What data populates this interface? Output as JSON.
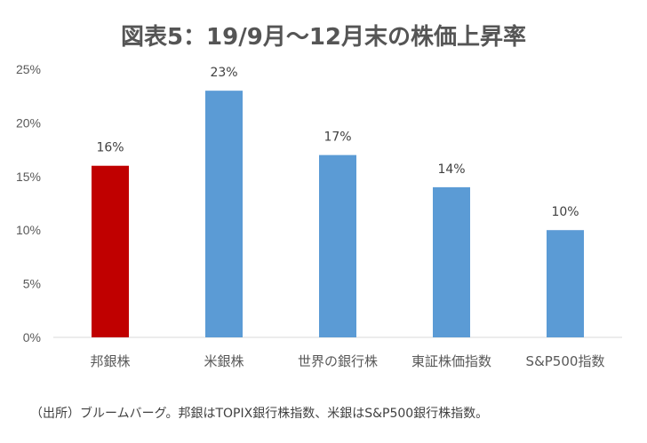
{
  "chart_data": {
    "type": "bar",
    "title": "図表5：19/9月～12月末の株価上昇率",
    "categories": [
      "邦銀株",
      "米銀株",
      "世界の銀行株",
      "東証株価指数",
      "S&P500指数"
    ],
    "values": [
      16,
      23,
      17,
      14,
      10
    ],
    "value_labels": [
      "16%",
      "23%",
      "17%",
      "14%",
      "10%"
    ],
    "bar_colors": [
      "#C00000",
      "#5B9BD5",
      "#5B9BD5",
      "#5B9BD5",
      "#5B9BD5"
    ],
    "ylim": [
      0,
      25
    ],
    "y_ticks": [
      0,
      5,
      10,
      15,
      20,
      25
    ],
    "y_tick_labels": [
      "0%",
      "5%",
      "10%",
      "15%",
      "20%",
      "25%"
    ],
    "grid": false,
    "legend": "none"
  },
  "footer": {
    "source_text": "（出所）ブルームバーグ。邦銀はTOPIX銀行株指数、米銀はS&P500銀行株指数。"
  }
}
